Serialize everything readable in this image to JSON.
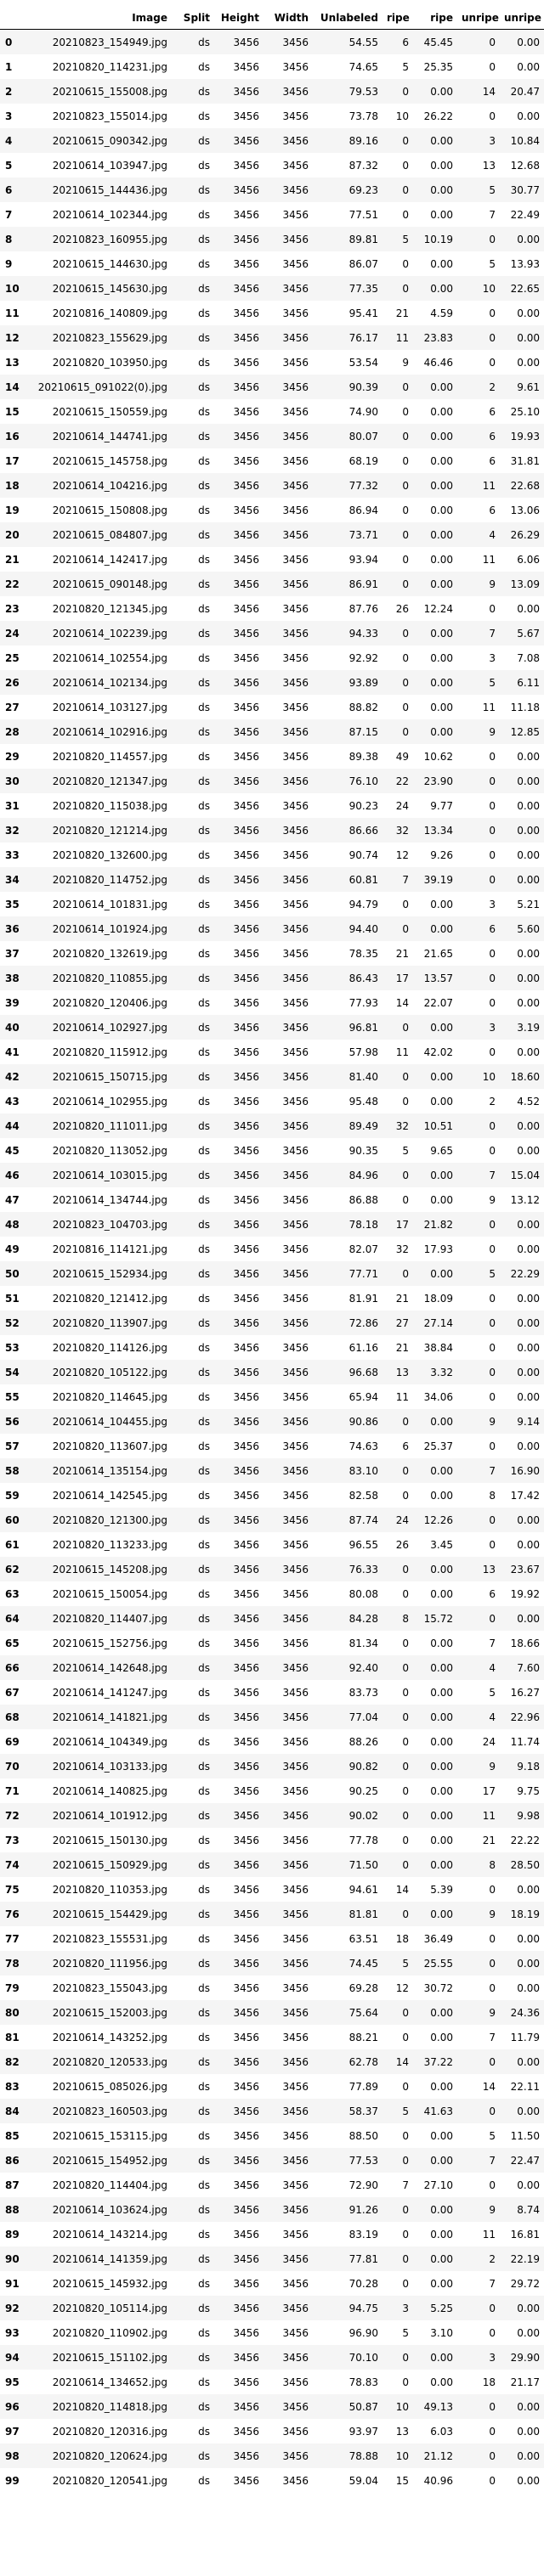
{
  "table": {
    "columns": [
      "",
      "Image",
      "Split",
      "Height",
      "Width",
      "Unlabeled",
      "ripe",
      "ripe",
      "unripe",
      "unripe"
    ],
    "rows": [
      [
        "0",
        "20210823_154949.jpg",
        "ds",
        "3456",
        "3456",
        "54.55",
        "6",
        "45.45",
        "0",
        "0.00"
      ],
      [
        "1",
        "20210820_114231.jpg",
        "ds",
        "3456",
        "3456",
        "74.65",
        "5",
        "25.35",
        "0",
        "0.00"
      ],
      [
        "2",
        "20210615_155008.jpg",
        "ds",
        "3456",
        "3456",
        "79.53",
        "0",
        "0.00",
        "14",
        "20.47"
      ],
      [
        "3",
        "20210823_155014.jpg",
        "ds",
        "3456",
        "3456",
        "73.78",
        "10",
        "26.22",
        "0",
        "0.00"
      ],
      [
        "4",
        "20210615_090342.jpg",
        "ds",
        "3456",
        "3456",
        "89.16",
        "0",
        "0.00",
        "3",
        "10.84"
      ],
      [
        "5",
        "20210614_103947.jpg",
        "ds",
        "3456",
        "3456",
        "87.32",
        "0",
        "0.00",
        "13",
        "12.68"
      ],
      [
        "6",
        "20210615_144436.jpg",
        "ds",
        "3456",
        "3456",
        "69.23",
        "0",
        "0.00",
        "5",
        "30.77"
      ],
      [
        "7",
        "20210614_102344.jpg",
        "ds",
        "3456",
        "3456",
        "77.51",
        "0",
        "0.00",
        "7",
        "22.49"
      ],
      [
        "8",
        "20210823_160955.jpg",
        "ds",
        "3456",
        "3456",
        "89.81",
        "5",
        "10.19",
        "0",
        "0.00"
      ],
      [
        "9",
        "20210615_144630.jpg",
        "ds",
        "3456",
        "3456",
        "86.07",
        "0",
        "0.00",
        "5",
        "13.93"
      ],
      [
        "10",
        "20210615_145630.jpg",
        "ds",
        "3456",
        "3456",
        "77.35",
        "0",
        "0.00",
        "10",
        "22.65"
      ],
      [
        "11",
        "20210816_140809.jpg",
        "ds",
        "3456",
        "3456",
        "95.41",
        "21",
        "4.59",
        "0",
        "0.00"
      ],
      [
        "12",
        "20210823_155629.jpg",
        "ds",
        "3456",
        "3456",
        "76.17",
        "11",
        "23.83",
        "0",
        "0.00"
      ],
      [
        "13",
        "20210820_103950.jpg",
        "ds",
        "3456",
        "3456",
        "53.54",
        "9",
        "46.46",
        "0",
        "0.00"
      ],
      [
        "14",
        "20210615_091022(0).jpg",
        "ds",
        "3456",
        "3456",
        "90.39",
        "0",
        "0.00",
        "2",
        "9.61"
      ],
      [
        "15",
        "20210615_150559.jpg",
        "ds",
        "3456",
        "3456",
        "74.90",
        "0",
        "0.00",
        "6",
        "25.10"
      ],
      [
        "16",
        "20210614_144741.jpg",
        "ds",
        "3456",
        "3456",
        "80.07",
        "0",
        "0.00",
        "6",
        "19.93"
      ],
      [
        "17",
        "20210615_145758.jpg",
        "ds",
        "3456",
        "3456",
        "68.19",
        "0",
        "0.00",
        "6",
        "31.81"
      ],
      [
        "18",
        "20210614_104216.jpg",
        "ds",
        "3456",
        "3456",
        "77.32",
        "0",
        "0.00",
        "11",
        "22.68"
      ],
      [
        "19",
        "20210615_150808.jpg",
        "ds",
        "3456",
        "3456",
        "86.94",
        "0",
        "0.00",
        "6",
        "13.06"
      ],
      [
        "20",
        "20210615_084807.jpg",
        "ds",
        "3456",
        "3456",
        "73.71",
        "0",
        "0.00",
        "4",
        "26.29"
      ],
      [
        "21",
        "20210614_142417.jpg",
        "ds",
        "3456",
        "3456",
        "93.94",
        "0",
        "0.00",
        "11",
        "6.06"
      ],
      [
        "22",
        "20210615_090148.jpg",
        "ds",
        "3456",
        "3456",
        "86.91",
        "0",
        "0.00",
        "9",
        "13.09"
      ],
      [
        "23",
        "20210820_121345.jpg",
        "ds",
        "3456",
        "3456",
        "87.76",
        "26",
        "12.24",
        "0",
        "0.00"
      ],
      [
        "24",
        "20210614_102239.jpg",
        "ds",
        "3456",
        "3456",
        "94.33",
        "0",
        "0.00",
        "7",
        "5.67"
      ],
      [
        "25",
        "20210614_102554.jpg",
        "ds",
        "3456",
        "3456",
        "92.92",
        "0",
        "0.00",
        "3",
        "7.08"
      ],
      [
        "26",
        "20210614_102134.jpg",
        "ds",
        "3456",
        "3456",
        "93.89",
        "0",
        "0.00",
        "5",
        "6.11"
      ],
      [
        "27",
        "20210614_103127.jpg",
        "ds",
        "3456",
        "3456",
        "88.82",
        "0",
        "0.00",
        "11",
        "11.18"
      ],
      [
        "28",
        "20210614_102916.jpg",
        "ds",
        "3456",
        "3456",
        "87.15",
        "0",
        "0.00",
        "9",
        "12.85"
      ],
      [
        "29",
        "20210820_114557.jpg",
        "ds",
        "3456",
        "3456",
        "89.38",
        "49",
        "10.62",
        "0",
        "0.00"
      ],
      [
        "30",
        "20210820_121347.jpg",
        "ds",
        "3456",
        "3456",
        "76.10",
        "22",
        "23.90",
        "0",
        "0.00"
      ],
      [
        "31",
        "20210820_115038.jpg",
        "ds",
        "3456",
        "3456",
        "90.23",
        "24",
        "9.77",
        "0",
        "0.00"
      ],
      [
        "32",
        "20210820_121214.jpg",
        "ds",
        "3456",
        "3456",
        "86.66",
        "32",
        "13.34",
        "0",
        "0.00"
      ],
      [
        "33",
        "20210820_132600.jpg",
        "ds",
        "3456",
        "3456",
        "90.74",
        "12",
        "9.26",
        "0",
        "0.00"
      ],
      [
        "34",
        "20210820_114752.jpg",
        "ds",
        "3456",
        "3456",
        "60.81",
        "7",
        "39.19",
        "0",
        "0.00"
      ],
      [
        "35",
        "20210614_101831.jpg",
        "ds",
        "3456",
        "3456",
        "94.79",
        "0",
        "0.00",
        "3",
        "5.21"
      ],
      [
        "36",
        "20210614_101924.jpg",
        "ds",
        "3456",
        "3456",
        "94.40",
        "0",
        "0.00",
        "6",
        "5.60"
      ],
      [
        "37",
        "20210820_132619.jpg",
        "ds",
        "3456",
        "3456",
        "78.35",
        "21",
        "21.65",
        "0",
        "0.00"
      ],
      [
        "38",
        "20210820_110855.jpg",
        "ds",
        "3456",
        "3456",
        "86.43",
        "17",
        "13.57",
        "0",
        "0.00"
      ],
      [
        "39",
        "20210820_120406.jpg",
        "ds",
        "3456",
        "3456",
        "77.93",
        "14",
        "22.07",
        "0",
        "0.00"
      ],
      [
        "40",
        "20210614_102927.jpg",
        "ds",
        "3456",
        "3456",
        "96.81",
        "0",
        "0.00",
        "3",
        "3.19"
      ],
      [
        "41",
        "20210820_115912.jpg",
        "ds",
        "3456",
        "3456",
        "57.98",
        "11",
        "42.02",
        "0",
        "0.00"
      ],
      [
        "42",
        "20210615_150715.jpg",
        "ds",
        "3456",
        "3456",
        "81.40",
        "0",
        "0.00",
        "10",
        "18.60"
      ],
      [
        "43",
        "20210614_102955.jpg",
        "ds",
        "3456",
        "3456",
        "95.48",
        "0",
        "0.00",
        "2",
        "4.52"
      ],
      [
        "44",
        "20210820_111011.jpg",
        "ds",
        "3456",
        "3456",
        "89.49",
        "32",
        "10.51",
        "0",
        "0.00"
      ],
      [
        "45",
        "20210820_113052.jpg",
        "ds",
        "3456",
        "3456",
        "90.35",
        "5",
        "9.65",
        "0",
        "0.00"
      ],
      [
        "46",
        "20210614_103015.jpg",
        "ds",
        "3456",
        "3456",
        "84.96",
        "0",
        "0.00",
        "7",
        "15.04"
      ],
      [
        "47",
        "20210614_134744.jpg",
        "ds",
        "3456",
        "3456",
        "86.88",
        "0",
        "0.00",
        "9",
        "13.12"
      ],
      [
        "48",
        "20210823_104703.jpg",
        "ds",
        "3456",
        "3456",
        "78.18",
        "17",
        "21.82",
        "0",
        "0.00"
      ],
      [
        "49",
        "20210816_114121.jpg",
        "ds",
        "3456",
        "3456",
        "82.07",
        "32",
        "17.93",
        "0",
        "0.00"
      ],
      [
        "50",
        "20210615_152934.jpg",
        "ds",
        "3456",
        "3456",
        "77.71",
        "0",
        "0.00",
        "5",
        "22.29"
      ],
      [
        "51",
        "20210820_121412.jpg",
        "ds",
        "3456",
        "3456",
        "81.91",
        "21",
        "18.09",
        "0",
        "0.00"
      ],
      [
        "52",
        "20210820_113907.jpg",
        "ds",
        "3456",
        "3456",
        "72.86",
        "27",
        "27.14",
        "0",
        "0.00"
      ],
      [
        "53",
        "20210820_114126.jpg",
        "ds",
        "3456",
        "3456",
        "61.16",
        "21",
        "38.84",
        "0",
        "0.00"
      ],
      [
        "54",
        "20210820_105122.jpg",
        "ds",
        "3456",
        "3456",
        "96.68",
        "13",
        "3.32",
        "0",
        "0.00"
      ],
      [
        "55",
        "20210820_114645.jpg",
        "ds",
        "3456",
        "3456",
        "65.94",
        "11",
        "34.06",
        "0",
        "0.00"
      ],
      [
        "56",
        "20210614_104455.jpg",
        "ds",
        "3456",
        "3456",
        "90.86",
        "0",
        "0.00",
        "9",
        "9.14"
      ],
      [
        "57",
        "20210820_113607.jpg",
        "ds",
        "3456",
        "3456",
        "74.63",
        "6",
        "25.37",
        "0",
        "0.00"
      ],
      [
        "58",
        "20210614_135154.jpg",
        "ds",
        "3456",
        "3456",
        "83.10",
        "0",
        "0.00",
        "7",
        "16.90"
      ],
      [
        "59",
        "20210614_142545.jpg",
        "ds",
        "3456",
        "3456",
        "82.58",
        "0",
        "0.00",
        "8",
        "17.42"
      ],
      [
        "60",
        "20210820_121300.jpg",
        "ds",
        "3456",
        "3456",
        "87.74",
        "24",
        "12.26",
        "0",
        "0.00"
      ],
      [
        "61",
        "20210820_113233.jpg",
        "ds",
        "3456",
        "3456",
        "96.55",
        "26",
        "3.45",
        "0",
        "0.00"
      ],
      [
        "62",
        "20210615_145208.jpg",
        "ds",
        "3456",
        "3456",
        "76.33",
        "0",
        "0.00",
        "13",
        "23.67"
      ],
      [
        "63",
        "20210615_150054.jpg",
        "ds",
        "3456",
        "3456",
        "80.08",
        "0",
        "0.00",
        "6",
        "19.92"
      ],
      [
        "64",
        "20210820_114407.jpg",
        "ds",
        "3456",
        "3456",
        "84.28",
        "8",
        "15.72",
        "0",
        "0.00"
      ],
      [
        "65",
        "20210615_152756.jpg",
        "ds",
        "3456",
        "3456",
        "81.34",
        "0",
        "0.00",
        "7",
        "18.66"
      ],
      [
        "66",
        "20210614_142648.jpg",
        "ds",
        "3456",
        "3456",
        "92.40",
        "0",
        "0.00",
        "4",
        "7.60"
      ],
      [
        "67",
        "20210614_141247.jpg",
        "ds",
        "3456",
        "3456",
        "83.73",
        "0",
        "0.00",
        "5",
        "16.27"
      ],
      [
        "68",
        "20210614_141821.jpg",
        "ds",
        "3456",
        "3456",
        "77.04",
        "0",
        "0.00",
        "4",
        "22.96"
      ],
      [
        "69",
        "20210614_104349.jpg",
        "ds",
        "3456",
        "3456",
        "88.26",
        "0",
        "0.00",
        "24",
        "11.74"
      ],
      [
        "70",
        "20210614_103133.jpg",
        "ds",
        "3456",
        "3456",
        "90.82",
        "0",
        "0.00",
        "9",
        "9.18"
      ],
      [
        "71",
        "20210614_140825.jpg",
        "ds",
        "3456",
        "3456",
        "90.25",
        "0",
        "0.00",
        "17",
        "9.75"
      ],
      [
        "72",
        "20210614_101912.jpg",
        "ds",
        "3456",
        "3456",
        "90.02",
        "0",
        "0.00",
        "11",
        "9.98"
      ],
      [
        "73",
        "20210615_150130.jpg",
        "ds",
        "3456",
        "3456",
        "77.78",
        "0",
        "0.00",
        "21",
        "22.22"
      ],
      [
        "74",
        "20210615_150929.jpg",
        "ds",
        "3456",
        "3456",
        "71.50",
        "0",
        "0.00",
        "8",
        "28.50"
      ],
      [
        "75",
        "20210820_110353.jpg",
        "ds",
        "3456",
        "3456",
        "94.61",
        "14",
        "5.39",
        "0",
        "0.00"
      ],
      [
        "76",
        "20210615_154429.jpg",
        "ds",
        "3456",
        "3456",
        "81.81",
        "0",
        "0.00",
        "9",
        "18.19"
      ],
      [
        "77",
        "20210823_155531.jpg",
        "ds",
        "3456",
        "3456",
        "63.51",
        "18",
        "36.49",
        "0",
        "0.00"
      ],
      [
        "78",
        "20210820_111956.jpg",
        "ds",
        "3456",
        "3456",
        "74.45",
        "5",
        "25.55",
        "0",
        "0.00"
      ],
      [
        "79",
        "20210823_155043.jpg",
        "ds",
        "3456",
        "3456",
        "69.28",
        "12",
        "30.72",
        "0",
        "0.00"
      ],
      [
        "80",
        "20210615_152003.jpg",
        "ds",
        "3456",
        "3456",
        "75.64",
        "0",
        "0.00",
        "9",
        "24.36"
      ],
      [
        "81",
        "20210614_143252.jpg",
        "ds",
        "3456",
        "3456",
        "88.21",
        "0",
        "0.00",
        "7",
        "11.79"
      ],
      [
        "82",
        "20210820_120533.jpg",
        "ds",
        "3456",
        "3456",
        "62.78",
        "14",
        "37.22",
        "0",
        "0.00"
      ],
      [
        "83",
        "20210615_085026.jpg",
        "ds",
        "3456",
        "3456",
        "77.89",
        "0",
        "0.00",
        "14",
        "22.11"
      ],
      [
        "84",
        "20210823_160503.jpg",
        "ds",
        "3456",
        "3456",
        "58.37",
        "5",
        "41.63",
        "0",
        "0.00"
      ],
      [
        "85",
        "20210615_153115.jpg",
        "ds",
        "3456",
        "3456",
        "88.50",
        "0",
        "0.00",
        "5",
        "11.50"
      ],
      [
        "86",
        "20210615_154952.jpg",
        "ds",
        "3456",
        "3456",
        "77.53",
        "0",
        "0.00",
        "7",
        "22.47"
      ],
      [
        "87",
        "20210820_114404.jpg",
        "ds",
        "3456",
        "3456",
        "72.90",
        "7",
        "27.10",
        "0",
        "0.00"
      ],
      [
        "88",
        "20210614_103624.jpg",
        "ds",
        "3456",
        "3456",
        "91.26",
        "0",
        "0.00",
        "9",
        "8.74"
      ],
      [
        "89",
        "20210614_143214.jpg",
        "ds",
        "3456",
        "3456",
        "83.19",
        "0",
        "0.00",
        "11",
        "16.81"
      ],
      [
        "90",
        "20210614_141359.jpg",
        "ds",
        "3456",
        "3456",
        "77.81",
        "0",
        "0.00",
        "2",
        "22.19"
      ],
      [
        "91",
        "20210615_145932.jpg",
        "ds",
        "3456",
        "3456",
        "70.28",
        "0",
        "0.00",
        "7",
        "29.72"
      ],
      [
        "92",
        "20210820_105114.jpg",
        "ds",
        "3456",
        "3456",
        "94.75",
        "3",
        "5.25",
        "0",
        "0.00"
      ],
      [
        "93",
        "20210820_110902.jpg",
        "ds",
        "3456",
        "3456",
        "96.90",
        "5",
        "3.10",
        "0",
        "0.00"
      ],
      [
        "94",
        "20210615_151102.jpg",
        "ds",
        "3456",
        "3456",
        "70.10",
        "0",
        "0.00",
        "3",
        "29.90"
      ],
      [
        "95",
        "20210614_134652.jpg",
        "ds",
        "3456",
        "3456",
        "78.83",
        "0",
        "0.00",
        "18",
        "21.17"
      ],
      [
        "96",
        "20210820_114818.jpg",
        "ds",
        "3456",
        "3456",
        "50.87",
        "10",
        "49.13",
        "0",
        "0.00"
      ],
      [
        "97",
        "20210820_120316.jpg",
        "ds",
        "3456",
        "3456",
        "93.97",
        "13",
        "6.03",
        "0",
        "0.00"
      ],
      [
        "98",
        "20210820_120624.jpg",
        "ds",
        "3456",
        "3456",
        "78.88",
        "10",
        "21.12",
        "0",
        "0.00"
      ],
      [
        "99",
        "20210820_120541.jpg",
        "ds",
        "3456",
        "3456",
        "59.04",
        "15",
        "40.96",
        "0",
        "0.00"
      ]
    ]
  }
}
